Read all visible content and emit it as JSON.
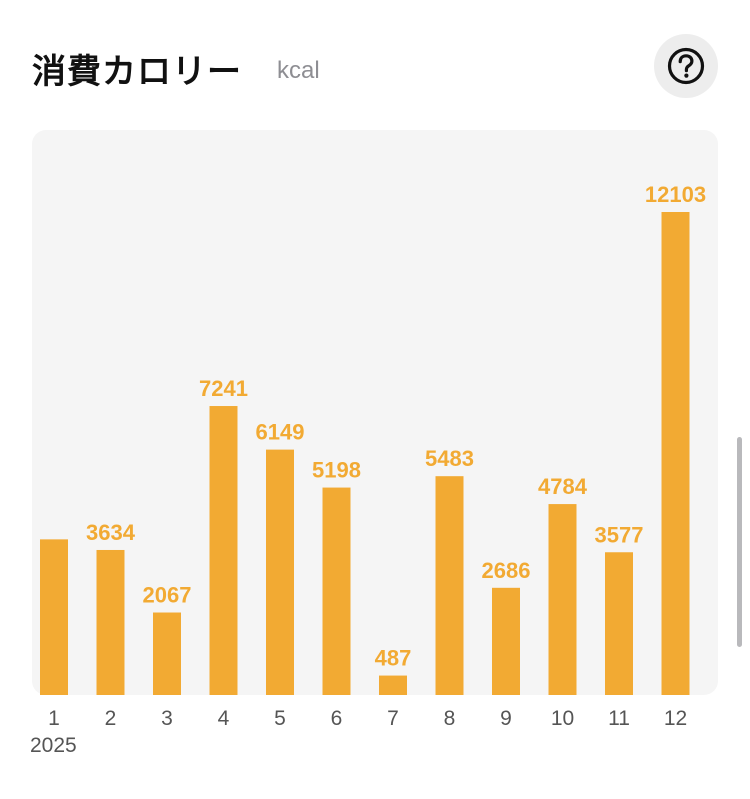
{
  "header": {
    "title": "消費カロリー",
    "unit": "kcal",
    "help_icon": "question-circle-icon"
  },
  "colors": {
    "bar": "#f2aa33",
    "plot_bg": "#f5f5f5"
  },
  "chart_data": {
    "type": "bar",
    "categories": [
      "1",
      "2",
      "3",
      "4",
      "5",
      "6",
      "7",
      "8",
      "9",
      "10",
      "11",
      "12"
    ],
    "values": [
      3900,
      3634,
      2067,
      7241,
      6149,
      5198,
      487,
      5483,
      2686,
      4784,
      3577,
      12103
    ],
    "data_labels": [
      "",
      "3634",
      "2067",
      "7241",
      "6149",
      "5198",
      "487",
      "5483",
      "2686",
      "4784",
      "3577",
      "12103"
    ],
    "x_sublabel": "2025",
    "title": "消費カロリー",
    "unit": "kcal",
    "ylim": [
      0,
      12103
    ],
    "grid": false
  }
}
